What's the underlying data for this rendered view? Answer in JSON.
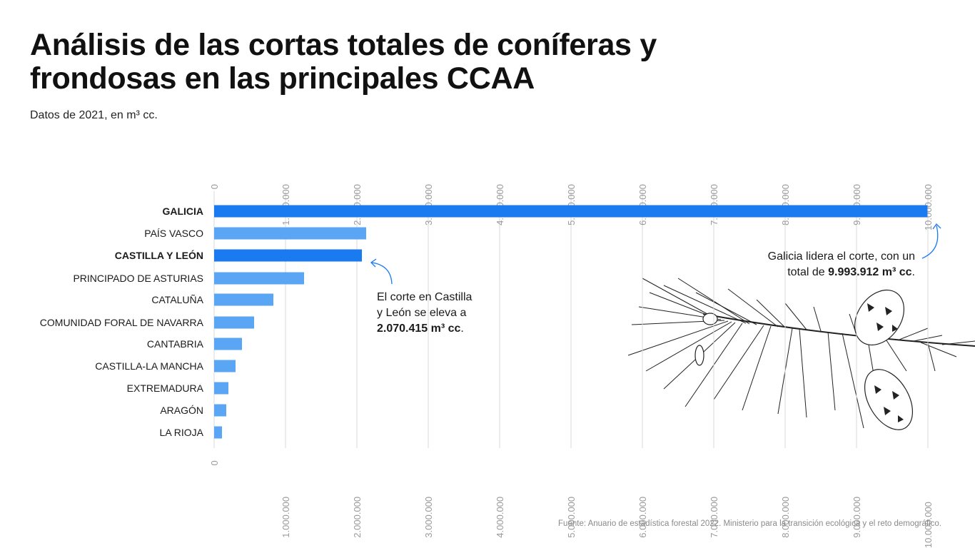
{
  "title": "Análisis de las cortas totales de coníferas y frondosas en las principales CCAA",
  "subtitle": "Datos de 2021, en m³ cc.",
  "source": "Fuente: Anuario de estadística forestal 2022. Ministerio para la transición ecológica y el reto demográfico.",
  "annotations": {
    "castilla": {
      "line1": "El corte en Castilla",
      "line2": "y León se eleva a",
      "value": "2.070.415 m³ cc",
      "end": "."
    },
    "galicia": {
      "line1": "Galicia lidera el corte, con un",
      "line2_prefix": "total de ",
      "value": "9.993.912 m³ cc",
      "end": "."
    }
  },
  "colors": {
    "highlight": "#1a7af0",
    "bar": "#5aa6f5",
    "grid": "#d9d9d9",
    "tick": "#9a9a9a"
  },
  "chart_data": {
    "type": "bar",
    "orientation": "horizontal",
    "categories": [
      "GALICIA",
      "PAÍS VASCO",
      "CASTILLA Y LEÓN",
      "PRINCIPADO DE ASTURIAS",
      "CATALUÑA",
      "COMUNIDAD FORAL DE NAVARRA",
      "CANTABRIA",
      "CASTILLA-LA MANCHA",
      "EXTREMADURA",
      "ARAGÓN",
      "LA RIOJA"
    ],
    "values": [
      9993912,
      2130000,
      2070415,
      1260000,
      830000,
      560000,
      390000,
      300000,
      200000,
      170000,
      110000
    ],
    "highlighted": [
      "GALICIA",
      "CASTILLA Y LEÓN"
    ],
    "xlim": [
      0,
      10000000
    ],
    "ticks": [
      0,
      1000000,
      2000000,
      3000000,
      4000000,
      5000000,
      6000000,
      7000000,
      8000000,
      9000000,
      10000000
    ],
    "tick_labels": [
      "0",
      "1.000.000",
      "2.000.000",
      "3.000.000",
      "4.000.000",
      "5.000.000",
      "6.000.000",
      "7.000.000",
      "8.000.000",
      "9.000.000",
      "10.000.000"
    ],
    "grid": true,
    "axis_labels_position": "top and bottom, rotated vertical"
  }
}
